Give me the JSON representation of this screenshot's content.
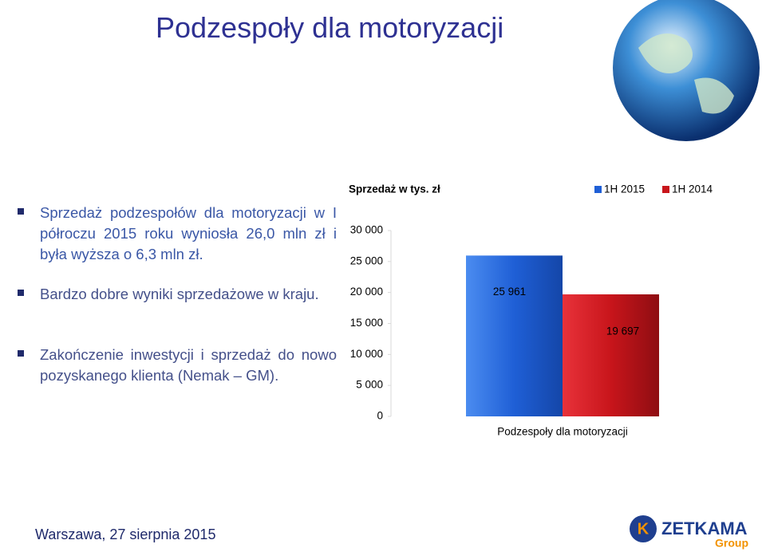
{
  "title": "Podzespoły dla motoryzacji",
  "bullets": [
    "Sprzedaż podzespołów dla motoryzacji w I półroczu 2015 roku wyniosła 26,0 mln zł i była wyższa o 6,3 mln zł.",
    "Bardzo dobre wyniki sprzedażowe w kraju.",
    "Zakończenie inwestycji i sprzedaż do nowo pozyskanego klienta (Nemak – GM)."
  ],
  "footer": "Warszawa, 27 sierpnia 2015",
  "logo": {
    "name": "ZETKAMA",
    "sub": "Group"
  },
  "chart_data": {
    "type": "bar",
    "title": "Sprzedaż w tys. zł",
    "categories": [
      "Podzespoły dla motoryzacji"
    ],
    "series": [
      {
        "name": "1H 2015",
        "color": "#1f5fd6",
        "values": [
          25961
        ],
        "value_labels": [
          "25 961"
        ]
      },
      {
        "name": "1H 2014",
        "color": "#c8151b",
        "values": [
          19697
        ],
        "value_labels": [
          "19 697"
        ]
      }
    ],
    "ylim": [
      0,
      30000
    ],
    "yticks": [
      0,
      {
        "value": 5000,
        "label": "5 000"
      },
      {
        "value": 10000,
        "label": "10 000"
      },
      {
        "value": 15000,
        "label": "15 000"
      },
      {
        "value": 20000,
        "label": "20 000"
      },
      {
        "value": 25000,
        "label": "25 000"
      },
      {
        "value": 30000,
        "label": "30 000"
      }
    ],
    "legend": "top-right",
    "grid": false
  }
}
